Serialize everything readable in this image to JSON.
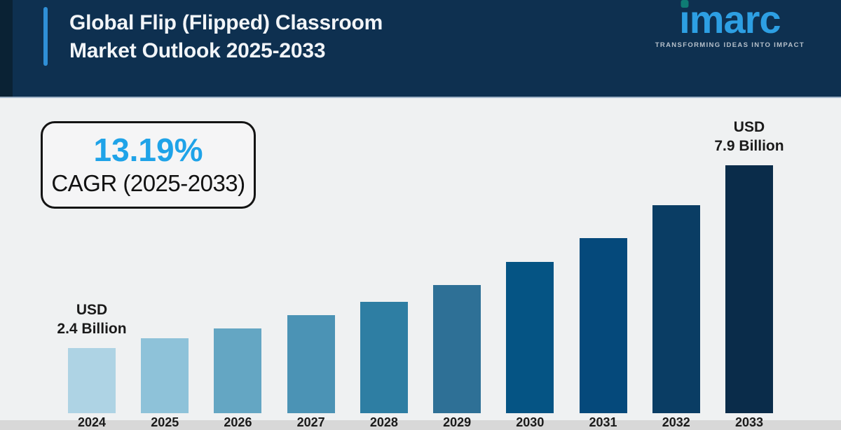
{
  "header": {
    "title_line1": "Global Flip (Flipped) Classroom",
    "title_line2": "Market Outlook 2025-2033",
    "logo": {
      "text": "imarc",
      "tagline": "TRANSFORMING IDEAS INTO IMPACT"
    }
  },
  "cagr_box": {
    "value": "13.19%",
    "label": "CAGR (2025-2033)"
  },
  "chart_data": {
    "type": "bar",
    "title": "Global Flip (Flipped) Classroom Market Outlook 2025-2033",
    "categories": [
      "2024",
      "2025",
      "2026",
      "2027",
      "2028",
      "2029",
      "2030",
      "2031",
      "2032",
      "2033"
    ],
    "values": [
      2.4,
      2.7,
      3.0,
      3.4,
      3.8,
      4.3,
      5.0,
      5.7,
      6.7,
      7.9
    ],
    "unit": "USD Billion",
    "xlabel": "",
    "ylabel": "",
    "grid": false,
    "legend": false,
    "annotations": [
      {
        "category": "2024",
        "line1": "USD",
        "line2": "2.4 Billion"
      },
      {
        "category": "2033",
        "line1": "USD",
        "line2": "7.9 Billion"
      }
    ],
    "bar_colors": [
      "#aed3e4",
      "#8ec2d9",
      "#64a6c3",
      "#4b93b5",
      "#2e7ea3",
      "#2e7096",
      "#055484",
      "#05497b",
      "#0a3d64",
      "#0a2c4a"
    ]
  },
  "colors": {
    "header_navy": "#0e3050",
    "header_strip": "#0a2234",
    "accent_blue": "#2f8fd7",
    "page_bg": "#eff1f2",
    "cagr_blue": "#1fa3e8",
    "logo_blue": "#2d9fe3",
    "logo_dot_teal": "#0e7c74"
  }
}
